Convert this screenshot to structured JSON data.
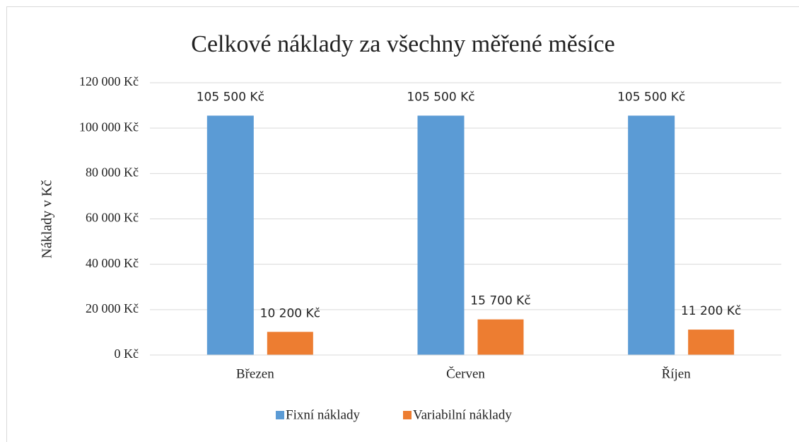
{
  "chart_data": {
    "type": "bar",
    "title": "Celkové náklady za všechny měřené měsíce",
    "y_label": "Náklady v Kč",
    "categories": [
      "Březen",
      "Červen",
      "Říjen"
    ],
    "series": [
      {
        "name": "Fixní náklady",
        "color": "#5b9bd5",
        "values": [
          105500,
          105500,
          105500
        ],
        "value_labels": [
          "105 500 Kč",
          "105 500 Kč",
          "105 500 Kč"
        ]
      },
      {
        "name": "Variabilní náklady",
        "color": "#ed7d31",
        "values": [
          10200,
          15700,
          11200
        ],
        "value_labels": [
          "10 200 Kč",
          "15 700 Kč",
          "11 200 Kč"
        ]
      }
    ],
    "ylim": [
      0,
      120000
    ],
    "yticks": [
      {
        "value": 0,
        "label": "0 Kč"
      },
      {
        "value": 20000,
        "label": "20 000 Kč"
      },
      {
        "value": 40000,
        "label": "40 000 Kč"
      },
      {
        "value": 60000,
        "label": "60 000 Kč"
      },
      {
        "value": 80000,
        "label": "80 000 Kč"
      },
      {
        "value": 100000,
        "label": "100 000 Kč"
      },
      {
        "value": 120000,
        "label": "120 000 Kč"
      }
    ],
    "grid": true,
    "legend": "bottom"
  }
}
